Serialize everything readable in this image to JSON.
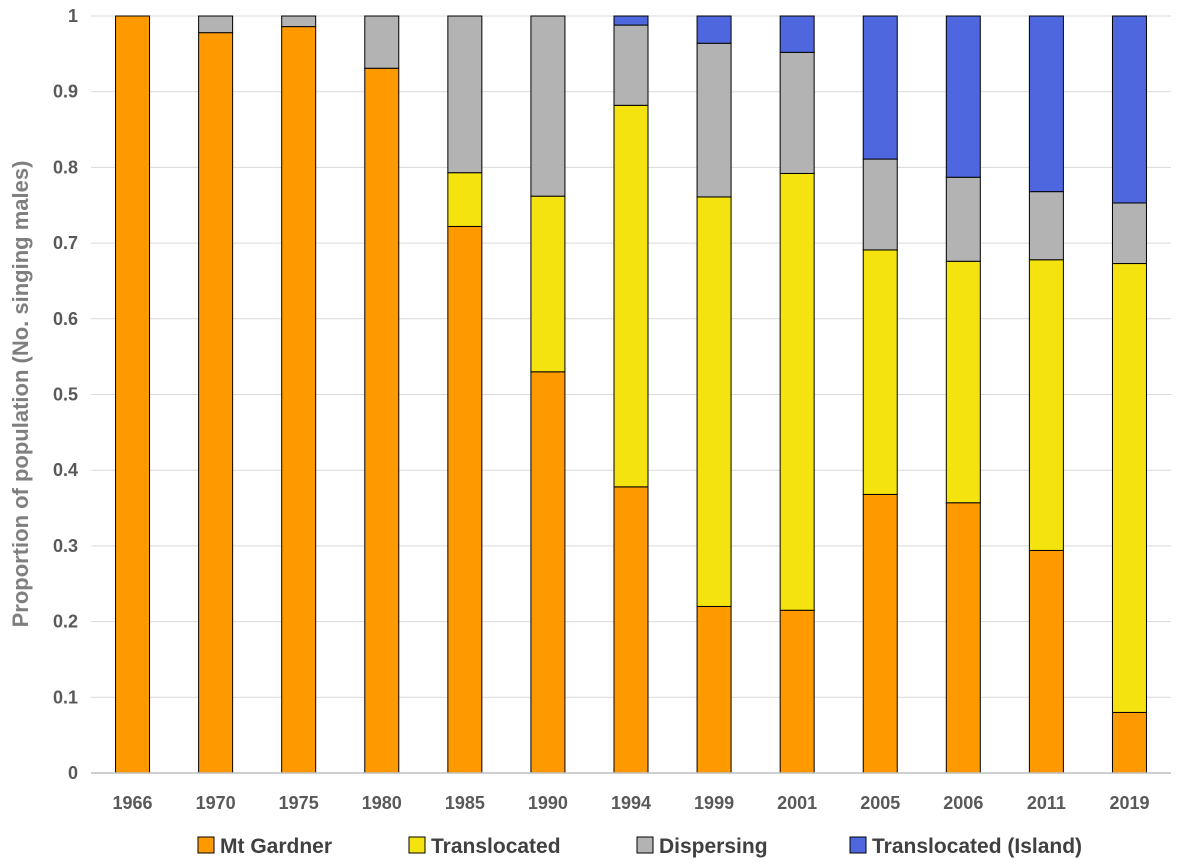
{
  "chart_data": {
    "type": "bar",
    "stacked": true,
    "title": "",
    "xlabel": "",
    "ylabel": "Proportion of population (No. singing males)",
    "ylim": [
      0,
      1
    ],
    "yticks": [
      "0",
      "0.1",
      "0.2",
      "0.3",
      "0.4",
      "0.5",
      "0.6",
      "0.7",
      "0.8",
      "0.9",
      "1"
    ],
    "grid": true,
    "legend_position": "bottom",
    "categories": [
      "1966",
      "1970",
      "1975",
      "1980",
      "1985",
      "1990",
      "1994",
      "1999",
      "2001",
      "2005",
      "2006",
      "2011",
      "2019"
    ],
    "series": [
      {
        "name": "Mt Gardner",
        "color": "#FF9900",
        "values": [
          1.0,
          0.978,
          0.986,
          0.931,
          0.722,
          0.53,
          0.378,
          0.22,
          0.215,
          0.368,
          0.357,
          0.294,
          0.08
        ]
      },
      {
        "name": "Translocated",
        "color": "#F5E30F",
        "values": [
          0,
          0,
          0,
          0,
          0.071,
          0.232,
          0.504,
          0.541,
          0.577,
          0.323,
          0.319,
          0.384,
          0.593
        ]
      },
      {
        "name": "Dispersing",
        "color": "#B3B3B3",
        "values": [
          0,
          0.022,
          0.014,
          0.069,
          0.207,
          0.238,
          0.106,
          0.203,
          0.16,
          0.12,
          0.111,
          0.09,
          0.08
        ]
      },
      {
        "name": "Translocated (Island)",
        "color": "#4F67DE",
        "values": [
          0,
          0,
          0,
          0,
          0,
          0,
          0.012,
          0.036,
          0.048,
          0.189,
          0.213,
          0.232,
          0.247
        ]
      }
    ]
  }
}
